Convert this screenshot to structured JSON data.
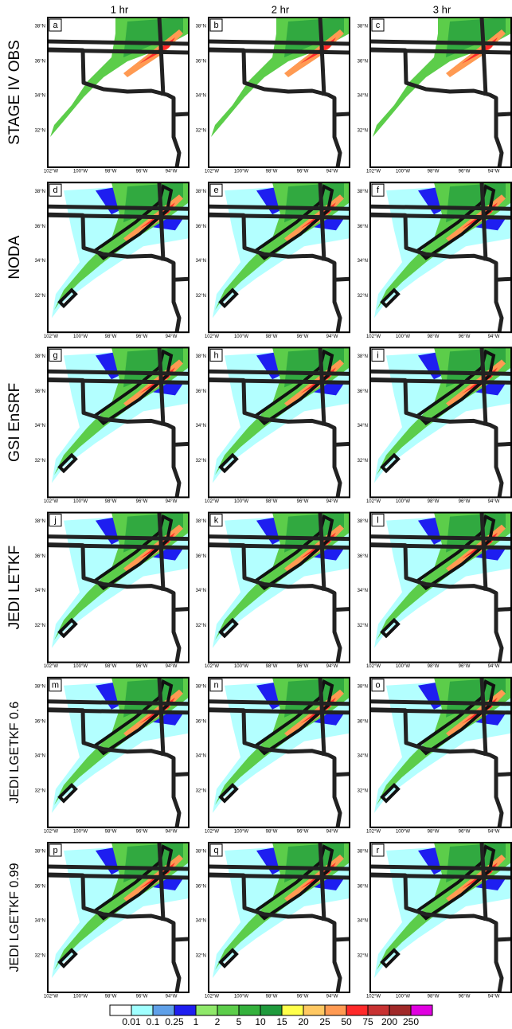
{
  "column_headers": [
    "1 hr",
    "2 hr",
    "3 hr"
  ],
  "row_labels": [
    "STAGE IV OBS",
    "NODA",
    "GSI EnSRF",
    "JEDI LETKF",
    "JEDI LGETKF 0.6",
    "JEDI LGETKF 0.99"
  ],
  "panel_labels": [
    [
      "a",
      "b",
      "c"
    ],
    [
      "d",
      "e",
      "f"
    ],
    [
      "g",
      "h",
      "i"
    ],
    [
      "j",
      "k",
      "l"
    ],
    [
      "m",
      "n",
      "o"
    ],
    [
      "p",
      "q",
      "r"
    ]
  ],
  "lon_ticks": [
    "102°W",
    "100°W",
    "98°W",
    "96°W",
    "94°W"
  ],
  "lat_ticks": [
    "38°N",
    "36°N",
    "34°N",
    "32°N"
  ],
  "colorbar": {
    "labels": [
      "0.01",
      "0.1",
      "0.25",
      "1",
      "2",
      "5",
      "10",
      "15",
      "20",
      "25",
      "50",
      "75",
      "200",
      "250"
    ],
    "colors": [
      "#ffffff",
      "#a0ffff",
      "#5fa0e8",
      "#1e1ef0",
      "#8fe86a",
      "#5ccd4a",
      "#34b13c",
      "#1f9a3c",
      "#ffff4a",
      "#ffc862",
      "#ff9a52",
      "#ff2a2a",
      "#c83232",
      "#a02828",
      "#e000e0"
    ]
  }
}
